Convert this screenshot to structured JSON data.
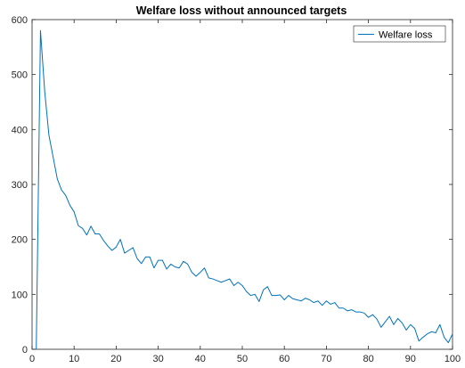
{
  "chart_data": {
    "type": "line",
    "title": "Welfare loss without announced targets",
    "xlabel": "",
    "ylabel": "",
    "xlim": [
      0,
      100
    ],
    "ylim": [
      0,
      600
    ],
    "xticks": [
      0,
      10,
      20,
      30,
      40,
      50,
      60,
      70,
      80,
      90,
      100
    ],
    "yticks": [
      0,
      100,
      200,
      300,
      400,
      500,
      600
    ],
    "grid": false,
    "legend_position": "top-right",
    "series": [
      {
        "name": "Welfare loss",
        "color": "#0072BD",
        "x": [
          1,
          2,
          3,
          4,
          5,
          6,
          7,
          8,
          9,
          10,
          11,
          12,
          13,
          14,
          15,
          16,
          17,
          18,
          19,
          20,
          21,
          22,
          23,
          24,
          25,
          26,
          27,
          28,
          29,
          30,
          31,
          32,
          33,
          34,
          35,
          36,
          37,
          38,
          39,
          40,
          41,
          42,
          43,
          44,
          45,
          46,
          47,
          48,
          49,
          50,
          51,
          52,
          53,
          54,
          55,
          56,
          57,
          58,
          59,
          60,
          61,
          62,
          63,
          64,
          65,
          66,
          67,
          68,
          69,
          70,
          71,
          72,
          73,
          74,
          75,
          76,
          77,
          78,
          79,
          80,
          81,
          82,
          83,
          84,
          85,
          86,
          87,
          88,
          89,
          90,
          91,
          92,
          93,
          94,
          95,
          96,
          97,
          98,
          99,
          100
        ],
        "values": [
          0,
          580,
          470,
          390,
          350,
          310,
          290,
          280,
          262,
          250,
          225,
          220,
          208,
          224,
          210,
          210,
          198,
          188,
          180,
          186,
          200,
          175,
          180,
          185,
          165,
          156,
          168,
          168,
          148,
          162,
          162,
          146,
          155,
          150,
          148,
          160,
          155,
          140,
          133,
          140,
          148,
          130,
          128,
          125,
          122,
          125,
          128,
          116,
          122,
          116,
          105,
          98,
          100,
          87,
          108,
          114,
          98,
          98,
          99,
          90,
          98,
          92,
          90,
          88,
          93,
          90,
          85,
          88,
          80,
          88,
          82,
          85,
          75,
          75,
          70,
          72,
          68,
          68,
          66,
          58,
          63,
          55,
          40,
          50,
          60,
          45,
          56,
          48,
          35,
          45,
          38,
          15,
          22,
          28,
          32,
          30,
          45,
          22,
          12,
          28
        ]
      }
    ]
  }
}
